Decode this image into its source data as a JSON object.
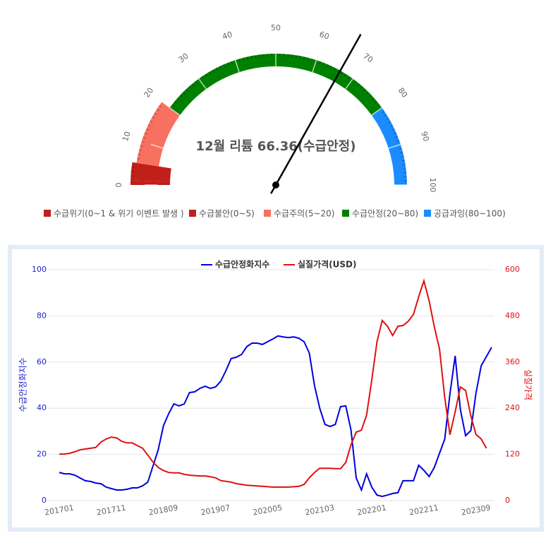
{
  "chart_data": [
    {
      "type": "gauge",
      "title": "12월 리튬 66.36(수급안정)",
      "value": 66.36,
      "range": [
        0,
        100
      ],
      "ticks": [
        0,
        10,
        20,
        30,
        40,
        50,
        60,
        70,
        80,
        90,
        100
      ],
      "bands": [
        {
          "name": "수급위기(0~1 & 위기 이벤트 발생 )",
          "from": 0,
          "to": 1,
          "color": "#c0201a"
        },
        {
          "name": "수급불안(0~5)",
          "from": 1,
          "to": 5,
          "color": "#c0201a"
        },
        {
          "name": "수급주의(5~20)",
          "from": 5,
          "to": 20,
          "color": "#f87060"
        },
        {
          "name": "수급안정(20~80)",
          "from": 20,
          "to": 80,
          "color": "#008000"
        },
        {
          "name": "공급과잉(80~100)",
          "from": 80,
          "to": 100,
          "color": "#1a8cff"
        }
      ]
    },
    {
      "type": "line",
      "ylabel": "수급안정화지수",
      "y2label": "실질가격",
      "legend": "top",
      "grid": true,
      "categories": [
        "201701",
        null,
        null,
        null,
        null,
        null,
        null,
        null,
        null,
        null,
        "201711",
        null,
        null,
        null,
        null,
        null,
        null,
        null,
        null,
        null,
        "201809",
        null,
        null,
        null,
        null,
        null,
        null,
        null,
        null,
        null,
        "201907",
        null,
        null,
        null,
        null,
        null,
        null,
        null,
        null,
        null,
        "202005",
        null,
        null,
        null,
        null,
        null,
        null,
        null,
        null,
        null,
        "202103",
        null,
        null,
        null,
        null,
        null,
        null,
        null,
        null,
        null,
        "202201",
        null,
        null,
        null,
        null,
        null,
        null,
        null,
        null,
        null,
        "202211",
        null,
        null,
        null,
        null,
        null,
        null,
        null,
        null,
        null,
        "202309",
        null,
        null,
        null
      ],
      "ylim": [
        0,
        100
      ],
      "yticks": [
        0,
        20,
        40,
        60,
        80,
        100
      ],
      "y2lim": [
        0,
        600
      ],
      "y2ticks": [
        0,
        120,
        240,
        360,
        480,
        600
      ],
      "series": [
        {
          "name": "수급안정화지수",
          "color": "#0000dd",
          "axis": "y",
          "values": [
            12.2,
            11.6,
            11.6,
            11,
            9.8,
            8.6,
            8.3,
            7.6,
            7.3,
            5.8,
            5.2,
            4.6,
            4.6,
            4.9,
            5.5,
            5.5,
            6.4,
            8,
            15,
            22,
            32.4,
            37.6,
            41.9,
            41,
            41.9,
            46.8,
            47.1,
            48.6,
            49.5,
            48.6,
            49.2,
            51.7,
            56.3,
            61.5,
            62.1,
            63.3,
            66.7,
            68.2,
            68.2,
            67.6,
            68.8,
            70,
            71.3,
            70.9,
            70.6,
            70.9,
            70.3,
            68.8,
            63.9,
            49.8,
            40,
            33,
            32.1,
            33,
            40.7,
            41,
            30.6,
            9.8,
            4.6,
            11.6,
            5.8,
            2.4,
            1.8,
            2.4,
            3.1,
            3.4,
            8.6,
            8.6,
            8.6,
            15.3,
            13.1,
            10.4,
            14.4,
            20.5,
            26.6,
            46.2,
            62.7,
            39.4,
            28.1,
            30.3,
            46.5,
            58.4,
            62.4,
            66.36
          ]
        },
        {
          "name": "실질가격(USD)",
          "color": "#e01010",
          "axis": "y2",
          "values": [
            121,
            121,
            123,
            127,
            132,
            134,
            136,
            138,
            152,
            160,
            165,
            163,
            154,
            150,
            150,
            143,
            136,
            118,
            100,
            86,
            78,
            73,
            72,
            72,
            68,
            66,
            65,
            64,
            64,
            62,
            59,
            52,
            50,
            48,
            44,
            42,
            40,
            39,
            38,
            37,
            36,
            35,
            35,
            35,
            35,
            36,
            37,
            42,
            59,
            73,
            84,
            84,
            84,
            83,
            83,
            99,
            145,
            178,
            183,
            222,
            314,
            413,
            468,
            453,
            429,
            453,
            455,
            466,
            484,
            530,
            571,
            519,
            451,
            394,
            268,
            171,
            231,
            295,
            286,
            220,
            172,
            160,
            136,
            null
          ]
        }
      ]
    }
  ]
}
